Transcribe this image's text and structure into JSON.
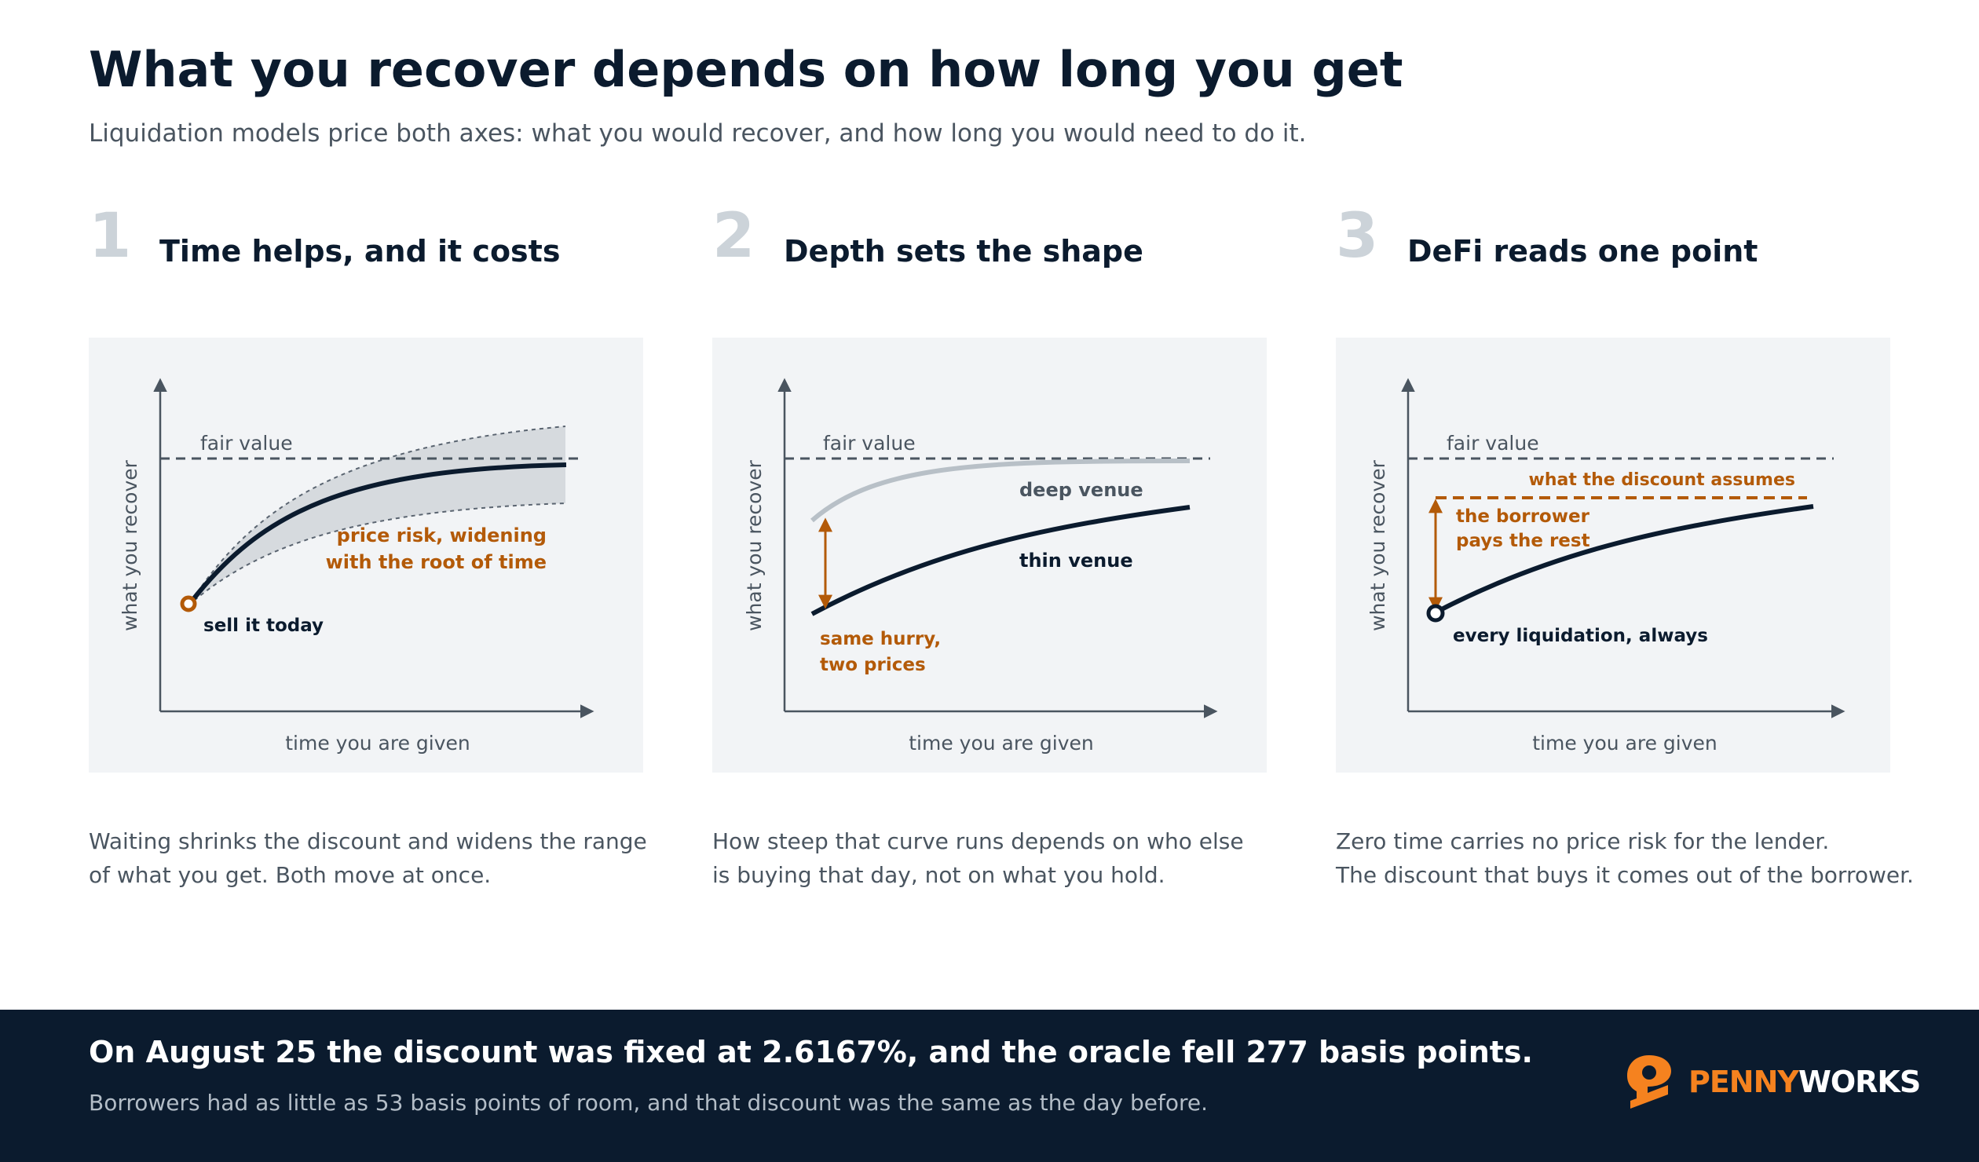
{
  "header": {
    "title": "What you recover depends on how long you get",
    "subtitle": "Liquidation models price both axes: what you would recover, and how long you would need to do it."
  },
  "colors": {
    "navy": "#0b1b2e",
    "accent_orange": "#b35a08",
    "panel_bg": "#f2f4f6",
    "muted": "#4a5560",
    "band_grey": "#d6dade"
  },
  "panels": [
    {
      "number": "1",
      "title": "Time helps, and it costs",
      "y_axis": "what you recover",
      "x_axis": "time you are given",
      "fair_value": "fair value",
      "label_start": "sell it today",
      "label_band_1": "price risk, widening",
      "label_band_2": "with the root of time",
      "caption_1": "Waiting shrinks the discount and widens the range",
      "caption_2": "of what you get. Both move at once."
    },
    {
      "number": "2",
      "title": "Depth sets the shape",
      "y_axis": "what you recover",
      "x_axis": "time you are given",
      "fair_value": "fair value",
      "label_deep": "deep venue",
      "label_thin": "thin venue",
      "label_gap_1": "same hurry,",
      "label_gap_2": "two prices",
      "caption_1": "How steep that curve runs depends on who else",
      "caption_2": "is buying that day, not on what you hold."
    },
    {
      "number": "3",
      "title": "DeFi reads one point",
      "y_axis": "what you recover",
      "x_axis": "time you are given",
      "fair_value": "fair value",
      "label_assumes": "what the discount assumes",
      "label_borrower_1": "the borrower",
      "label_borrower_2": "pays the rest",
      "label_point": "every liquidation, always",
      "caption_1": "Zero time carries no price risk for the lender.",
      "caption_2": "The discount that buys it comes out of the borrower."
    }
  ],
  "footer": {
    "headline": "On August 25 the discount was fixed at 2.6167%, and the oracle fell 277 basis points.",
    "sub": "Borrowers had as little as 53 basis points of room, and that discount was the same as the day before.",
    "logo_part1": "PENNY",
    "logo_part2": "WORKS"
  }
}
